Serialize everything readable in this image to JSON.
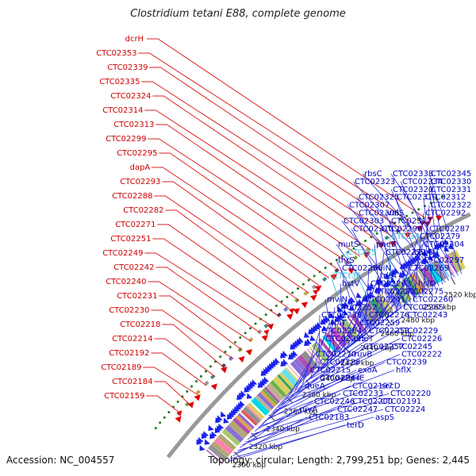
{
  "title": "Clostridium tetani E88, complete genome",
  "footer": {
    "accession": "Accession: NC_004557",
    "topology": "Topology: circular; Length: 2,799,251 bp; Genes: 2,445"
  },
  "colors": {
    "red_label": "#cc0000",
    "blue_label": "#0000bb",
    "cyan_label": "#2ab8d8",
    "forward_arrow": "#e00000",
    "reverse_arrow": "#1a22ee",
    "ring": "#999999",
    "dots": "#1a7a1a",
    "leader_blue": "#2b2bd8",
    "leader_red": "#dd2222"
  },
  "ticks": [
    "2300 kbp",
    "2320 kbp",
    "2340 kbp",
    "2360 kbp",
    "2380 kbp",
    "2400 kbp",
    "2420 kbp",
    "2440 kbp",
    "2460 kbp",
    "2480 kbp",
    "2500 kbp",
    "2520 kbp"
  ],
  "left_labels": [
    "dcrH",
    "CTC02353",
    "CTC02339",
    "CTC02335",
    "CTC02324",
    "CTC02314",
    "CTC02313",
    "CTC02299",
    "CTC02295",
    "dapA",
    "CTC02293",
    "CTC02288",
    "CTC02282",
    "CTC02271",
    "CTC02251",
    "CTC02249",
    "CTC02242",
    "CTC02240",
    "CTC02231",
    "CTC02230",
    "CTC02218",
    "CTC02214",
    "CTC02192",
    "CTC02189",
    "CTC02184",
    "CTC02159"
  ],
  "right_labels": [
    "CTC02345",
    "CTC02338",
    "rbsC",
    "CTC02330",
    "CTC02334",
    "CTC02323",
    "CTC02331",
    "CTC02320",
    "CTC02325",
    "CTC02312",
    "CTC02319",
    "CTC02307",
    "CTC02322",
    "valS",
    "CTC02306",
    "CTC02292",
    "CTC02317",
    "CTC02303",
    "CTC02287",
    "CTC02296",
    "CTC02310",
    "CTC02279",
    "CTCt34",
    "mutS",
    "CTC02304",
    "pheS",
    "CTCt35",
    "capD",
    "CTC02272",
    "thrS",
    "CTC02297",
    "mviN",
    "CTC02256",
    "CTC02269",
    "trkA",
    "CTCt36",
    "hslO",
    "CTC02263",
    "bstV",
    "CTC02275",
    "CTC02281",
    "mviN",
    "CTC02260",
    "CTC02241",
    "CTC02252",
    "CTC02265",
    "CTC02276",
    "CTC02238",
    "CTC02243",
    "CTC02259",
    "rplT",
    "CTC02229",
    "CTC02253",
    "CTC02264",
    "CTC02226",
    "pheT",
    "CTC02235",
    "CTC02245",
    "CTC02257",
    "CTC02270",
    "CTC02222",
    "ruvB",
    "CTC02228",
    "CTC02239",
    "exoA",
    "CTC02215",
    "hflX",
    "terE",
    "CTC02244",
    "secD",
    "CTC02197",
    "queA",
    "CTC02220",
    "CTC02233",
    "CTC02246",
    "CTC02191",
    "CTC02200",
    "ruvA",
    "CTC02224",
    "CTC02247",
    "CTC02183",
    "aspS",
    "terD"
  ]
}
